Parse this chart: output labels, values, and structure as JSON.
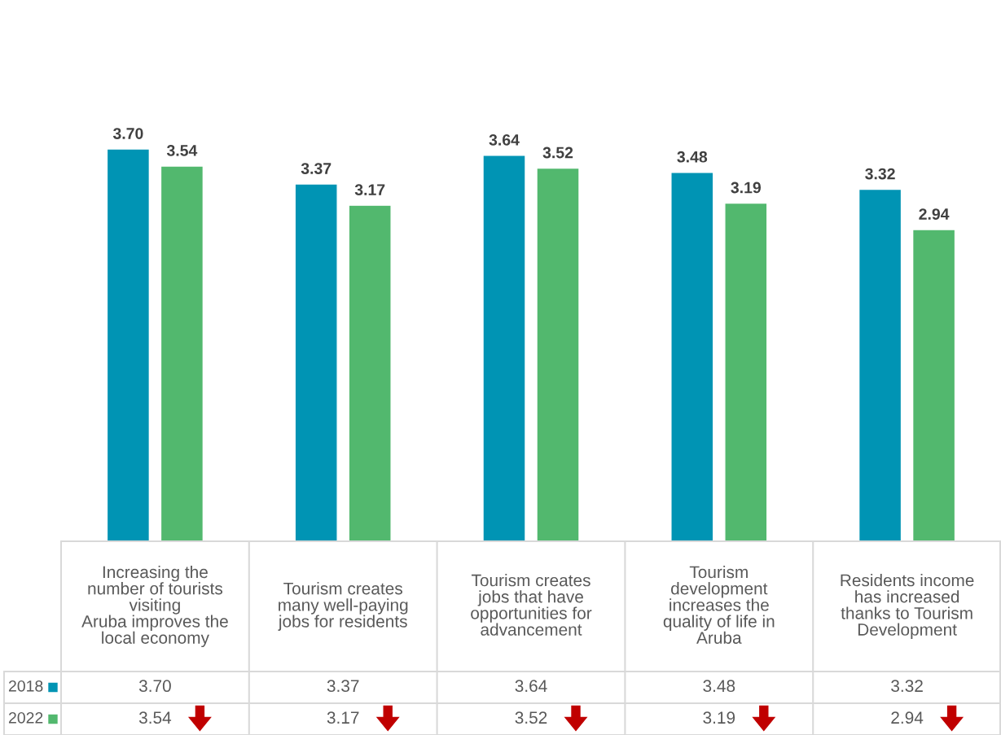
{
  "chart_data": {
    "type": "bar",
    "categories": [
      "Increasing the\nnumber of tourists\nvisiting\nAruba improves the\nlocal economy",
      "Tourism creates\nmany well-paying\njobs for residents",
      "Tourism creates\njobs that have\nopportunities for\nadvancement",
      "Tourism\ndevelopment\nincreases the\nquality of life in\nAruba",
      "Residents income\nhas increased\nthanks to Tourism\nDevelopment"
    ],
    "series": [
      {
        "name": "2018",
        "color": "#0094b4",
        "values": [
          3.7,
          3.37,
          3.64,
          3.48,
          3.32
        ],
        "value_labels": [
          "3.70",
          "3.37",
          "3.64",
          "3.48",
          "3.32"
        ]
      },
      {
        "name": "2022",
        "color": "#52b86e",
        "values": [
          3.54,
          3.17,
          3.52,
          3.19,
          2.94
        ],
        "value_labels": [
          "3.54",
          "3.17",
          "3.52",
          "3.19",
          "2.94"
        ]
      }
    ],
    "legend": "bottom left"
  }
}
